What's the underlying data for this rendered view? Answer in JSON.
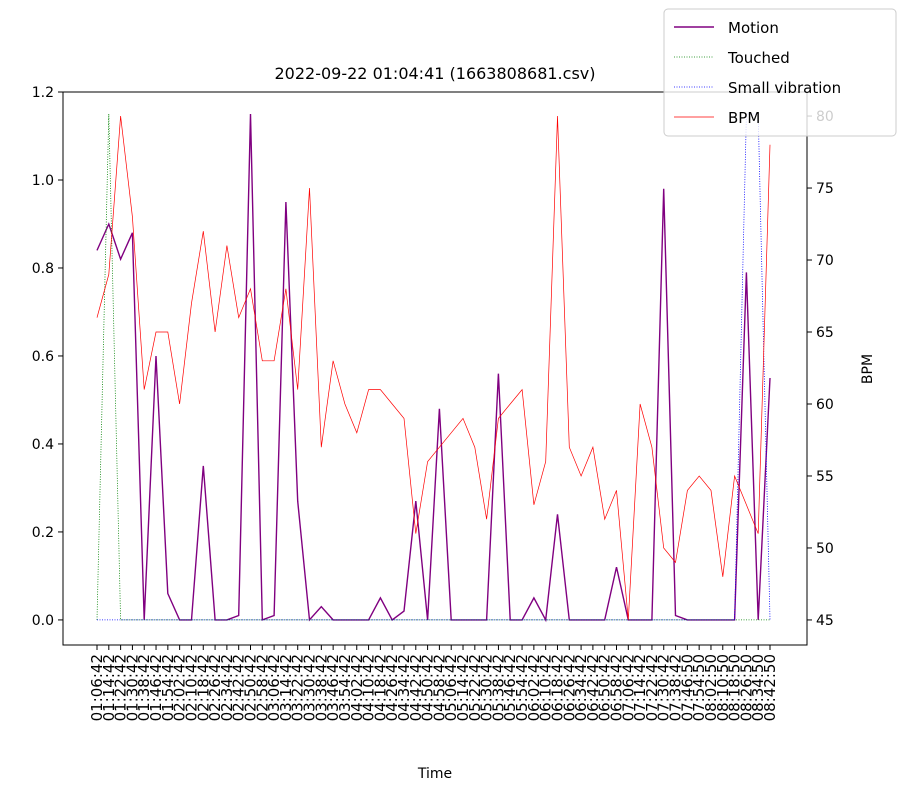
{
  "chart_data": {
    "type": "line",
    "title": "2022-09-22 01:04:41  (1663808681.csv)",
    "xlabel": "Time",
    "y2label": "BPM",
    "categories": [
      "01:06:42",
      "01:14:42",
      "01:22:42",
      "01:30:42",
      "01:38:42",
      "01:46:42",
      "01:54:42",
      "02:02:42",
      "02:10:42",
      "02:18:42",
      "02:26:42",
      "02:34:42",
      "02:42:42",
      "02:50:42",
      "02:58:42",
      "03:06:42",
      "03:14:42",
      "03:22:42",
      "03:30:42",
      "03:38:42",
      "03:46:42",
      "03:54:42",
      "04:02:42",
      "04:10:42",
      "04:18:42",
      "04:26:42",
      "04:34:42",
      "04:42:42",
      "04:50:42",
      "04:58:42",
      "05:06:42",
      "05:14:42",
      "05:22:42",
      "05:30:42",
      "05:38:42",
      "05:46:42",
      "05:54:42",
      "06:02:42",
      "06:10:42",
      "06:18:42",
      "06:26:42",
      "06:34:42",
      "06:42:42",
      "06:50:42",
      "06:58:42",
      "07:06:42",
      "07:14:42",
      "07:22:42",
      "07:30:42",
      "07:38:42",
      "07:46:50",
      "07:54:50",
      "08:02:50",
      "08:10:50",
      "08:18:50",
      "08:26:50",
      "08:34:50",
      "08:42:50"
    ],
    "series": [
      {
        "name": "Motion",
        "color": "#800080",
        "width": 1.4,
        "dash": "",
        "values": [
          0.84,
          0.9,
          0.82,
          0.88,
          0.0,
          0.6,
          0.06,
          0.0,
          0.0,
          0.35,
          0.0,
          0.0,
          0.01,
          1.15,
          0.0,
          0.01,
          0.95,
          0.27,
          0.0,
          0.03,
          0.0,
          0.0,
          0.0,
          0.0,
          0.05,
          0.0,
          0.02,
          0.27,
          0.0,
          0.48,
          0.0,
          0.0,
          0.0,
          0.0,
          0.56,
          0.0,
          0.0,
          0.05,
          0.0,
          0.24,
          0.0,
          0.0,
          0.0,
          0.0,
          0.12,
          0.0,
          0.0,
          0.0,
          0.98,
          0.01,
          0.0,
          0.0,
          0.0,
          0.0,
          0.0,
          0.79,
          0.0,
          0.55
        ]
      },
      {
        "name": "Touched",
        "color": "#008000",
        "width": 0.8,
        "dash": "1 1.5",
        "values": [
          0,
          1.15,
          0,
          0,
          0,
          0,
          0,
          0,
          0,
          0,
          0,
          0,
          0,
          0,
          0,
          0,
          0,
          0,
          0,
          0,
          0,
          0,
          0,
          0,
          0,
          0,
          0,
          0,
          0,
          0,
          0,
          0,
          0,
          0,
          0,
          0,
          0,
          0,
          0,
          0,
          0,
          0,
          0,
          0,
          0,
          0,
          0,
          0,
          0,
          0,
          0,
          0,
          0,
          0,
          0,
          0,
          0,
          0
        ]
      },
      {
        "name": "Small vibration",
        "color": "#0000ff",
        "width": 0.8,
        "dash": "1 1.5",
        "values": [
          0,
          0,
          0,
          0,
          0,
          0,
          0,
          0,
          0,
          0,
          0,
          0,
          0,
          0,
          0,
          0,
          0,
          0,
          0,
          0,
          0,
          0,
          0,
          0,
          0,
          0,
          0,
          0,
          0,
          0,
          0,
          0,
          0,
          0,
          0,
          0,
          0,
          0,
          0,
          0,
          0,
          0,
          0,
          0,
          0,
          0,
          0,
          0,
          0,
          0,
          0,
          0,
          0,
          0,
          0,
          1.15,
          1.15,
          0
        ]
      },
      {
        "name": "BPM",
        "color": "#ff0000",
        "width": 0.7,
        "dash": "",
        "axis": "y2",
        "values": [
          66,
          69,
          80,
          73,
          61,
          65,
          65,
          60,
          67,
          72,
          65,
          71,
          66,
          68,
          63,
          63,
          68,
          61,
          75,
          57,
          63,
          60,
          58,
          61,
          61,
          60,
          59,
          51,
          56,
          57,
          58,
          59,
          57,
          52,
          59,
          60,
          61,
          53,
          56,
          80,
          57,
          55,
          57,
          52,
          54,
          45,
          60,
          57,
          50,
          49,
          54,
          55,
          54,
          48,
          55,
          53,
          51,
          78
        ]
      }
    ],
    "ylim": [
      -0.057,
      1.2
    ],
    "yticks": [
      {
        "value": 0,
        "label": "0.0"
      },
      0.2,
      0.4,
      0.6,
      0.8,
      {
        "value": 1,
        "label": "1.0"
      },
      1.2
    ],
    "y2lim": [
      43.26,
      81.67
    ],
    "y2ticks": [
      45,
      50,
      55,
      60,
      65,
      70,
      75,
      80
    ],
    "legend": "upper right"
  }
}
